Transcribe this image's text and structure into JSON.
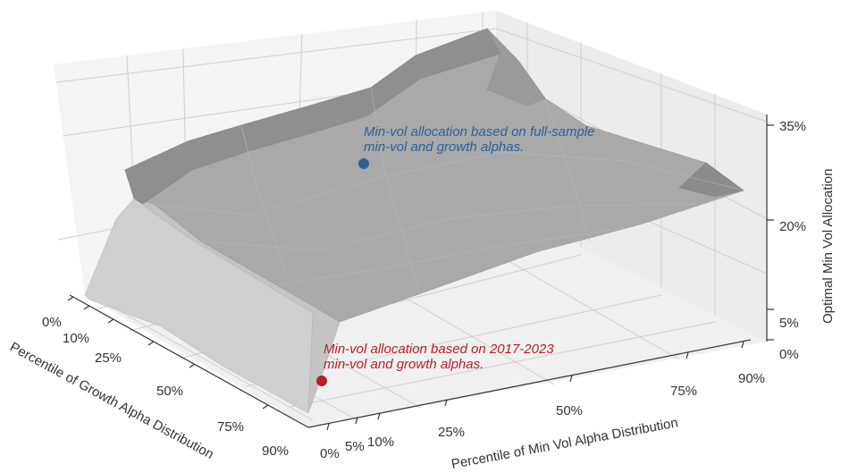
{
  "chart_data": {
    "type": "surface3d",
    "x_axis": {
      "label": "Percentile of Growth Alpha Distribution",
      "ticks": [
        "0%",
        "10%",
        "25%",
        "50%",
        "75%",
        "90%"
      ],
      "values": [
        0,
        10,
        25,
        50,
        75,
        90
      ]
    },
    "y_axis": {
      "label": "Percentile of Min Vol Alpha Distribution",
      "ticks": [
        "0%",
        "5%",
        "10%",
        "25%",
        "50%",
        "75%",
        "90%"
      ],
      "values": [
        0,
        5,
        10,
        25,
        50,
        75,
        90
      ]
    },
    "z_axis": {
      "label": "Optimal Min Vol Allocation",
      "ticks": [
        "0%",
        "5%",
        "20%",
        "35%"
      ],
      "values": [
        0,
        5,
        20,
        35
      ]
    },
    "surface_color": "#a8a8a8",
    "annotations": [
      {
        "id": "full-sample",
        "lines": [
          "Min-vol allocation based on full-sample",
          "min-vol and growth alphas."
        ],
        "color": "#2e6199"
      },
      {
        "id": "recent",
        "lines": [
          "Min-vol allocation based on 2017-2023",
          "min-vol and growth alphas."
        ],
        "color": "#b5202c"
      }
    ],
    "grid": true
  }
}
